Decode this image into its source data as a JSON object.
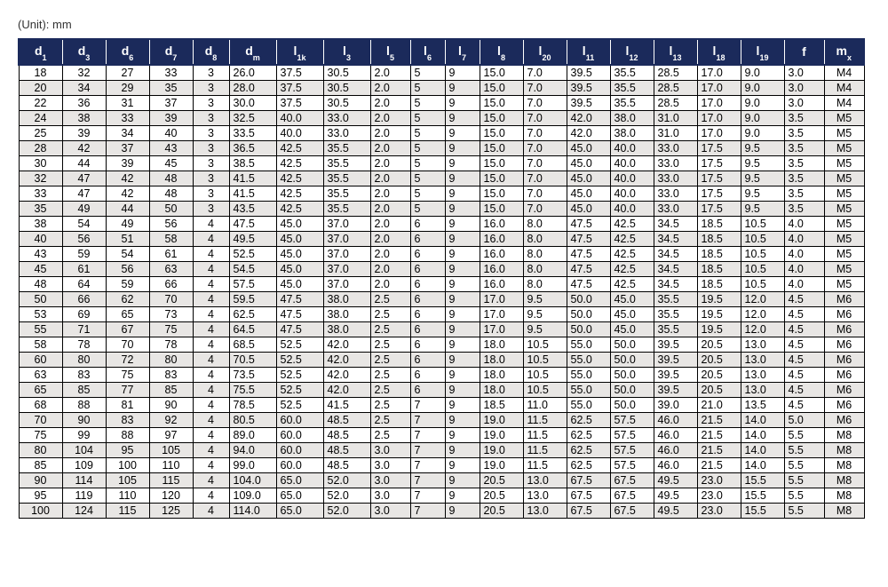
{
  "unit_label": "(Unit): mm",
  "table": {
    "header_bg": "#1b2a5b",
    "header_fg": "#ffffff",
    "row_bg_odd": "#ffffff",
    "row_bg_even": "#e8e6e4",
    "border_color": "#000000",
    "font_size_body": 12.5,
    "font_size_header": 14,
    "columns": [
      {
        "main": "d",
        "sub": "1"
      },
      {
        "main": "d",
        "sub": "3"
      },
      {
        "main": "d",
        "sub": "6"
      },
      {
        "main": "d",
        "sub": "7"
      },
      {
        "main": "d",
        "sub": "8"
      },
      {
        "main": "d",
        "sub": "m"
      },
      {
        "main": "l",
        "sub": "1k"
      },
      {
        "main": "l",
        "sub": "3"
      },
      {
        "main": "l",
        "sub": "5"
      },
      {
        "main": "l",
        "sub": "6"
      },
      {
        "main": "l",
        "sub": "7"
      },
      {
        "main": "l",
        "sub": "8"
      },
      {
        "main": "l",
        "sub": "20"
      },
      {
        "main": "l",
        "sub": "11"
      },
      {
        "main": "l",
        "sub": "12"
      },
      {
        "main": "l",
        "sub": "13"
      },
      {
        "main": "l",
        "sub": "18"
      },
      {
        "main": "l",
        "sub": "19"
      },
      {
        "main": "f",
        "sub": ""
      },
      {
        "main": "m",
        "sub": "x"
      }
    ],
    "rows": [
      [
        "18",
        "32",
        "27",
        "33",
        "3",
        "26.0",
        "37.5",
        "30.5",
        "2.0",
        "5",
        "9",
        "15.0",
        "7.0",
        "39.5",
        "35.5",
        "28.5",
        "17.0",
        "9.0",
        "3.0",
        "M4"
      ],
      [
        "20",
        "34",
        "29",
        "35",
        "3",
        "28.0",
        "37.5",
        "30.5",
        "2.0",
        "5",
        "9",
        "15.0",
        "7.0",
        "39.5",
        "35.5",
        "28.5",
        "17.0",
        "9.0",
        "3.0",
        "M4"
      ],
      [
        "22",
        "36",
        "31",
        "37",
        "3",
        "30.0",
        "37.5",
        "30.5",
        "2.0",
        "5",
        "9",
        "15.0",
        "7.0",
        "39.5",
        "35.5",
        "28.5",
        "17.0",
        "9.0",
        "3.0",
        "M4"
      ],
      [
        "24",
        "38",
        "33",
        "39",
        "3",
        "32.5",
        "40.0",
        "33.0",
        "2.0",
        "5",
        "9",
        "15.0",
        "7.0",
        "42.0",
        "38.0",
        "31.0",
        "17.0",
        "9.0",
        "3.5",
        "M5"
      ],
      [
        "25",
        "39",
        "34",
        "40",
        "3",
        "33.5",
        "40.0",
        "33.0",
        "2.0",
        "5",
        "9",
        "15.0",
        "7.0",
        "42.0",
        "38.0",
        "31.0",
        "17.0",
        "9.0",
        "3.5",
        "M5"
      ],
      [
        "28",
        "42",
        "37",
        "43",
        "3",
        "36.5",
        "42.5",
        "35.5",
        "2.0",
        "5",
        "9",
        "15.0",
        "7.0",
        "45.0",
        "40.0",
        "33.0",
        "17.5",
        "9.5",
        "3.5",
        "M5"
      ],
      [
        "30",
        "44",
        "39",
        "45",
        "3",
        "38.5",
        "42.5",
        "35.5",
        "2.0",
        "5",
        "9",
        "15.0",
        "7.0",
        "45.0",
        "40.0",
        "33.0",
        "17.5",
        "9.5",
        "3.5",
        "M5"
      ],
      [
        "32",
        "47",
        "42",
        "48",
        "3",
        "41.5",
        "42.5",
        "35.5",
        "2.0",
        "5",
        "9",
        "15.0",
        "7.0",
        "45.0",
        "40.0",
        "33.0",
        "17.5",
        "9.5",
        "3.5",
        "M5"
      ],
      [
        "33",
        "47",
        "42",
        "48",
        "3",
        "41.5",
        "42.5",
        "35.5",
        "2.0",
        "5",
        "9",
        "15.0",
        "7.0",
        "45.0",
        "40.0",
        "33.0",
        "17.5",
        "9.5",
        "3.5",
        "M5"
      ],
      [
        "35",
        "49",
        "44",
        "50",
        "3",
        "43.5",
        "42.5",
        "35.5",
        "2.0",
        "5",
        "9",
        "15.0",
        "7.0",
        "45.0",
        "40.0",
        "33.0",
        "17.5",
        "9.5",
        "3.5",
        "M5"
      ],
      [
        "38",
        "54",
        "49",
        "56",
        "4",
        "47.5",
        "45.0",
        "37.0",
        "2.0",
        "6",
        "9",
        "16.0",
        "8.0",
        "47.5",
        "42.5",
        "34.5",
        "18.5",
        "10.5",
        "4.0",
        "M5"
      ],
      [
        "40",
        "56",
        "51",
        "58",
        "4",
        "49.5",
        "45.0",
        "37.0",
        "2.0",
        "6",
        "9",
        "16.0",
        "8.0",
        "47.5",
        "42.5",
        "34.5",
        "18.5",
        "10.5",
        "4.0",
        "M5"
      ],
      [
        "43",
        "59",
        "54",
        "61",
        "4",
        "52.5",
        "45.0",
        "37.0",
        "2.0",
        "6",
        "9",
        "16.0",
        "8.0",
        "47.5",
        "42.5",
        "34.5",
        "18.5",
        "10.5",
        "4.0",
        "M5"
      ],
      [
        "45",
        "61",
        "56",
        "63",
        "4",
        "54.5",
        "45.0",
        "37.0",
        "2.0",
        "6",
        "9",
        "16.0",
        "8.0",
        "47.5",
        "42.5",
        "34.5",
        "18.5",
        "10.5",
        "4.0",
        "M5"
      ],
      [
        "48",
        "64",
        "59",
        "66",
        "4",
        "57.5",
        "45.0",
        "37.0",
        "2.0",
        "6",
        "9",
        "16.0",
        "8.0",
        "47.5",
        "42.5",
        "34.5",
        "18.5",
        "10.5",
        "4.0",
        "M5"
      ],
      [
        "50",
        "66",
        "62",
        "70",
        "4",
        "59.5",
        "47.5",
        "38.0",
        "2.5",
        "6",
        "9",
        "17.0",
        "9.5",
        "50.0",
        "45.0",
        "35.5",
        "19.5",
        "12.0",
        "4.5",
        "M6"
      ],
      [
        "53",
        "69",
        "65",
        "73",
        "4",
        "62.5",
        "47.5",
        "38.0",
        "2.5",
        "6",
        "9",
        "17.0",
        "9.5",
        "50.0",
        "45.0",
        "35.5",
        "19.5",
        "12.0",
        "4.5",
        "M6"
      ],
      [
        "55",
        "71",
        "67",
        "75",
        "4",
        "64.5",
        "47.5",
        "38.0",
        "2.5",
        "6",
        "9",
        "17.0",
        "9.5",
        "50.0",
        "45.0",
        "35.5",
        "19.5",
        "12.0",
        "4.5",
        "M6"
      ],
      [
        "58",
        "78",
        "70",
        "78",
        "4",
        "68.5",
        "52.5",
        "42.0",
        "2.5",
        "6",
        "9",
        "18.0",
        "10.5",
        "55.0",
        "50.0",
        "39.5",
        "20.5",
        "13.0",
        "4.5",
        "M6"
      ],
      [
        "60",
        "80",
        "72",
        "80",
        "4",
        "70.5",
        "52.5",
        "42.0",
        "2.5",
        "6",
        "9",
        "18.0",
        "10.5",
        "55.0",
        "50.0",
        "39.5",
        "20.5",
        "13.0",
        "4.5",
        "M6"
      ],
      [
        "63",
        "83",
        "75",
        "83",
        "4",
        "73.5",
        "52.5",
        "42.0",
        "2.5",
        "6",
        "9",
        "18.0",
        "10.5",
        "55.0",
        "50.0",
        "39.5",
        "20.5",
        "13.0",
        "4.5",
        "M6"
      ],
      [
        "65",
        "85",
        "77",
        "85",
        "4",
        "75.5",
        "52.5",
        "42.0",
        "2.5",
        "6",
        "9",
        "18.0",
        "10.5",
        "55.0",
        "50.0",
        "39.5",
        "20.5",
        "13.0",
        "4.5",
        "M6"
      ],
      [
        "68",
        "88",
        "81",
        "90",
        "4",
        "78.5",
        "52.5",
        "41.5",
        "2.5",
        "7",
        "9",
        "18.5",
        "11.0",
        "55.0",
        "50.0",
        "39.0",
        "21.0",
        "13.5",
        "4.5",
        "M6"
      ],
      [
        "70",
        "90",
        "83",
        "92",
        "4",
        "80.5",
        "60.0",
        "48.5",
        "2.5",
        "7",
        "9",
        "19.0",
        "11.5",
        "62.5",
        "57.5",
        "46.0",
        "21.5",
        "14.0",
        "5.0",
        "M6"
      ],
      [
        "75",
        "99",
        "88",
        "97",
        "4",
        "89.0",
        "60.0",
        "48.5",
        "2.5",
        "7",
        "9",
        "19.0",
        "11.5",
        "62.5",
        "57.5",
        "46.0",
        "21.5",
        "14.0",
        "5.5",
        "M8"
      ],
      [
        "80",
        "104",
        "95",
        "105",
        "4",
        "94.0",
        "60.0",
        "48.5",
        "3.0",
        "7",
        "9",
        "19.0",
        "11.5",
        "62.5",
        "57.5",
        "46.0",
        "21.5",
        "14.0",
        "5.5",
        "M8"
      ],
      [
        "85",
        "109",
        "100",
        "110",
        "4",
        "99.0",
        "60.0",
        "48.5",
        "3.0",
        "7",
        "9",
        "19.0",
        "11.5",
        "62.5",
        "57.5",
        "46.0",
        "21.5",
        "14.0",
        "5.5",
        "M8"
      ],
      [
        "90",
        "114",
        "105",
        "115",
        "4",
        "104.0",
        "65.0",
        "52.0",
        "3.0",
        "7",
        "9",
        "20.5",
        "13.0",
        "67.5",
        "67.5",
        "49.5",
        "23.0",
        "15.5",
        "5.5",
        "M8"
      ],
      [
        "95",
        "119",
        "110",
        "120",
        "4",
        "109.0",
        "65.0",
        "52.0",
        "3.0",
        "7",
        "9",
        "20.5",
        "13.0",
        "67.5",
        "67.5",
        "49.5",
        "23.0",
        "15.5",
        "5.5",
        "M8"
      ],
      [
        "100",
        "124",
        "115",
        "125",
        "4",
        "114.0",
        "65.0",
        "52.0",
        "3.0",
        "7",
        "9",
        "20.5",
        "13.0",
        "67.5",
        "67.5",
        "49.5",
        "23.0",
        "15.5",
        "5.5",
        "M8"
      ]
    ]
  }
}
